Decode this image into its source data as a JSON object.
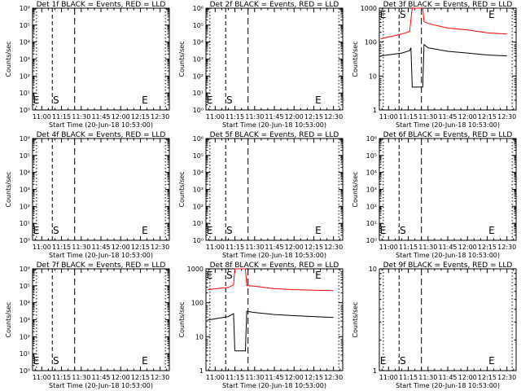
{
  "chart_data": [
    {
      "panel": "Det 1f",
      "title": "Det 1f BLACK = Events, RED = LLD",
      "type": "line",
      "scale": "log",
      "ylabel": "Counts/sec",
      "xlabel": "Start Time (20-Jun-18 10:53:00)",
      "yticks": [
        "10^0",
        "10^1",
        "10^2",
        "10^3",
        "10^4",
        "10^5",
        "10^6"
      ],
      "xticks": [
        "11:00",
        "11:15",
        "11:30",
        "11:45",
        "12:00",
        "12:15",
        "12:30"
      ],
      "ylim": [
        1,
        1000000
      ],
      "xlim_minutes": [
        -7,
        97
      ],
      "markers": {
        "E_left": "E",
        "S": "S",
        "E_right": "E"
      },
      "series": []
    },
    {
      "panel": "Det 2f",
      "title": "Det 2f BLACK = Events, RED = LLD",
      "type": "line",
      "scale": "log",
      "ylabel": "Counts/sec",
      "xlabel": "Start Time (20-Jun-18 10:53:00)",
      "yticks": [
        "10^0",
        "10^1",
        "10^2",
        "10^3",
        "10^4",
        "10^5",
        "10^6"
      ],
      "xticks": [
        "11:00",
        "11:15",
        "11:30",
        "11:45",
        "12:00",
        "12:15",
        "12:30"
      ],
      "ylim": [
        1,
        1000000
      ],
      "xlim_minutes": [
        -7,
        97
      ],
      "markers": {
        "E_left": "E",
        "S": "S",
        "E_right": "E"
      },
      "series": []
    },
    {
      "panel": "Det 3f",
      "title": "Det 3f BLACK = Events, RED = LLD",
      "type": "line",
      "scale": "log",
      "ylabel": "Counts/sec",
      "xlabel": "Start Time (20-Jun-18 10:53:00)",
      "yticks": [
        "1",
        "10",
        "100",
        "1000"
      ],
      "xticks": [
        "11:00",
        "11:15",
        "11:30",
        "11:45",
        "12:00",
        "12:15",
        "12:30"
      ],
      "ylim": [
        1,
        1300
      ],
      "xlim_minutes": [
        -7,
        97
      ],
      "markers": {
        "E_left": "E",
        "S": "S",
        "E_right": "E"
      },
      "series": [
        {
          "color": "#ff0000",
          "points": [
            [
              -6,
              150
            ],
            [
              10,
              210
            ],
            [
              16,
              250
            ],
            [
              17,
              600
            ],
            [
              18,
              1300
            ],
            [
              26,
              1300
            ],
            [
              27,
              500
            ],
            [
              32,
              420
            ],
            [
              45,
              320
            ],
            [
              60,
              280
            ],
            [
              75,
              230
            ],
            [
              90,
              210
            ]
          ]
        },
        {
          "color": "#000000",
          "points": [
            [
              -6,
              45
            ],
            [
              10,
              55
            ],
            [
              16,
              65
            ],
            [
              17,
              80
            ],
            [
              18,
              5
            ],
            [
              26,
              5
            ],
            [
              27,
              100
            ],
            [
              30,
              80
            ],
            [
              45,
              62
            ],
            [
              60,
              55
            ],
            [
              75,
              48
            ],
            [
              90,
              45
            ]
          ]
        }
      ]
    },
    {
      "panel": "Det 4f",
      "title": "Det 4f BLACK = Events, RED = LLD",
      "type": "line",
      "scale": "log",
      "ylabel": "Counts/sec",
      "xlabel": "Start Time (20-Jun-18 10:53:00)",
      "yticks": [
        "10^0",
        "10^1",
        "10^2",
        "10^3",
        "10^4",
        "10^5",
        "10^6"
      ],
      "xticks": [
        "11:00",
        "11:15",
        "11:30",
        "11:45",
        "12:00",
        "12:15",
        "12:30"
      ],
      "ylim": [
        1,
        1000000
      ],
      "xlim_minutes": [
        -7,
        97
      ],
      "markers": {
        "E_left": "E",
        "S": "S",
        "E_right": "E"
      },
      "series": []
    },
    {
      "panel": "Det 5f",
      "title": "Det 5f BLACK = Events, RED = LLD",
      "type": "line",
      "scale": "log",
      "ylabel": "Counts/sec",
      "xlabel": "Start Time (20-Jun-18 10:53:00)",
      "yticks": [
        "10^0",
        "10^1",
        "10^2",
        "10^3",
        "10^4",
        "10^5",
        "10^6"
      ],
      "xticks": [
        "11:00",
        "11:15",
        "11:30",
        "11:45",
        "12:00",
        "12:15",
        "12:30"
      ],
      "ylim": [
        1,
        1000000
      ],
      "xlim_minutes": [
        -7,
        97
      ],
      "markers": {
        "E_left": "E",
        "S": "S",
        "E_right": "E"
      },
      "series": []
    },
    {
      "panel": "Det 6f",
      "title": "Det 6f BLACK = Events, RED = LLD",
      "type": "line",
      "scale": "log",
      "ylabel": "Counts/sec",
      "xlabel": "Start Time (20-Jun-18 10:53:00)",
      "yticks": [
        "10^0",
        "10^1",
        "10^2",
        "10^3",
        "10^4",
        "10^5",
        "10^6"
      ],
      "xticks": [
        "11:00",
        "11:15",
        "11:30",
        "11:45",
        "12:00",
        "12:15",
        "12:30"
      ],
      "ylim": [
        1,
        1000000
      ],
      "xlim_minutes": [
        -7,
        97
      ],
      "markers": {
        "E_left": "E",
        "S": "S",
        "E_right": "E"
      },
      "series": []
    },
    {
      "panel": "Det 7f",
      "title": "Det 7f BLACK = Events, RED = LLD",
      "type": "line",
      "scale": "log",
      "ylabel": "Counts/sec",
      "xlabel": "Start Time (20-Jun-18 10:53:00)",
      "yticks": [
        "10^0",
        "10^1",
        "10^2",
        "10^3",
        "10^4",
        "10^5",
        "10^6"
      ],
      "xticks": [
        "11:00",
        "11:15",
        "11:30",
        "11:45",
        "12:00",
        "12:15",
        "12:30"
      ],
      "ylim": [
        1,
        1000000
      ],
      "xlim_minutes": [
        -7,
        97
      ],
      "markers": {
        "E_left": "E",
        "S": "S",
        "E_right": "E"
      },
      "series": []
    },
    {
      "panel": "Det 8f",
      "title": "Det 8f BLACK = Events, RED = LLD",
      "type": "line",
      "scale": "log",
      "ylabel": "Counts/sec",
      "xlabel": "Start Time (20-Jun-18 10:53:00)",
      "yticks": [
        "1",
        "10",
        "100",
        "1000"
      ],
      "xticks": [
        "11:00",
        "11:15",
        "11:30",
        "11:45",
        "12:00",
        "12:15",
        "12:30"
      ],
      "ylim": [
        1,
        1300
      ],
      "xlim_minutes": [
        -7,
        97
      ],
      "markers": {
        "E_left": "E",
        "S": "S",
        "E_right": "E"
      },
      "series": [
        {
          "color": "#ff0000",
          "points": [
            [
              -6,
              300
            ],
            [
              10,
              350
            ],
            [
              14,
              420
            ],
            [
              15,
              1300
            ],
            [
              23,
              1300
            ],
            [
              24,
              400
            ],
            [
              30,
              380
            ],
            [
              45,
              320
            ],
            [
              60,
              300
            ],
            [
              75,
              290
            ],
            [
              90,
              280
            ]
          ]
        },
        {
          "color": "#000000",
          "points": [
            [
              -6,
              35
            ],
            [
              10,
              45
            ],
            [
              14,
              55
            ],
            [
              15,
              4
            ],
            [
              23,
              4
            ],
            [
              24,
              65
            ],
            [
              30,
              60
            ],
            [
              45,
              52
            ],
            [
              60,
              48
            ],
            [
              75,
              45
            ],
            [
              90,
              42
            ]
          ]
        }
      ]
    },
    {
      "panel": "Det 9f",
      "title": "Det 9f BLACK = Events, RED = LLD",
      "type": "line",
      "scale": "log",
      "ylabel": "Counts/sec",
      "xlabel": "Start Time (20-Jun-18 10:53:00)",
      "yticks": [
        "1",
        "10"
      ],
      "xticks": [
        "11:00",
        "11:15",
        "11:30",
        "11:45",
        "12:00",
        "12:15",
        "12:30"
      ],
      "ylim": [
        1,
        10
      ],
      "xlim_minutes": [
        -7,
        97
      ],
      "markers": {
        "E_left": "E",
        "S": "S",
        "E_right": "E"
      },
      "series": []
    }
  ],
  "colors": {
    "background": "#ffffff",
    "axes": "#000000",
    "lld": "#ff0000",
    "events": "#000000"
  }
}
